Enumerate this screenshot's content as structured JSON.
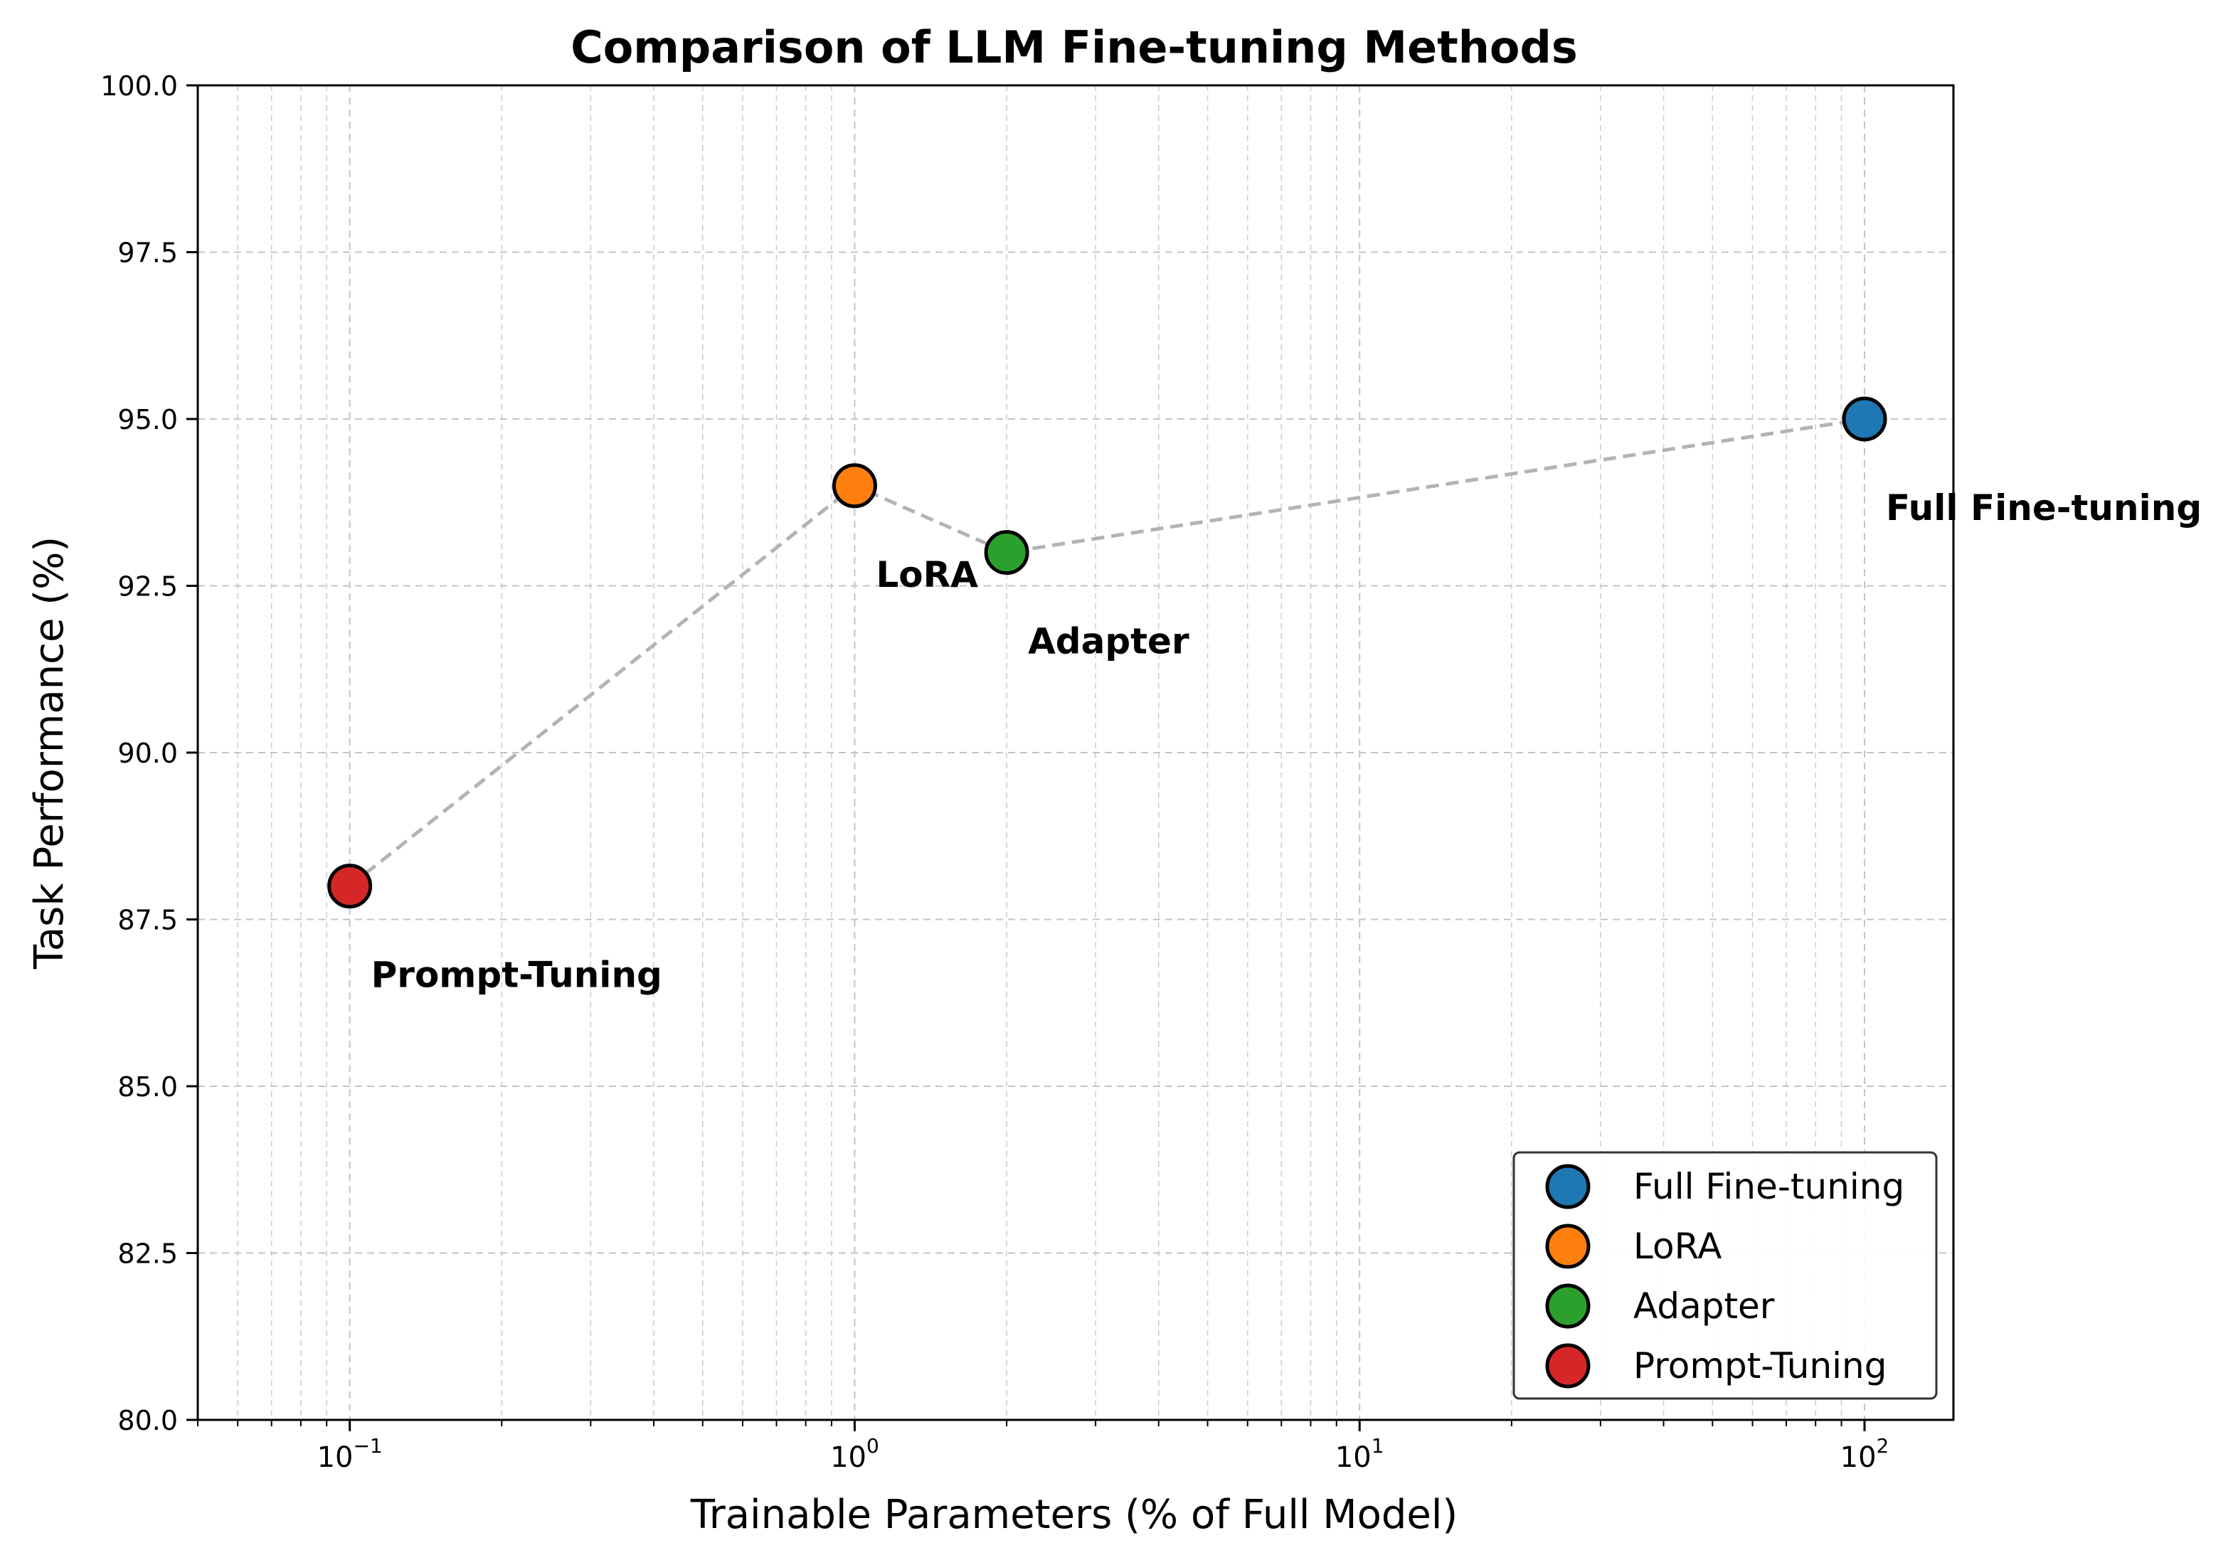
{
  "chart_data": {
    "type": "scatter",
    "title": "Comparison of LLM Fine-tuning Methods",
    "xlabel": "Trainable Parameters (% of Full Model)",
    "ylabel": "Task Performance (%)",
    "xscale": "log",
    "xlim": [
      0.05,
      150
    ],
    "ylim": [
      80,
      100
    ],
    "grid": true,
    "legend_position": "lower-right",
    "x_ticks": [
      {
        "value": 0.1,
        "base": "10",
        "exp": "−1"
      },
      {
        "value": 1,
        "base": "10",
        "exp": "0"
      },
      {
        "value": 10,
        "base": "10",
        "exp": "1"
      },
      {
        "value": 100,
        "base": "10",
        "exp": "2"
      }
    ],
    "y_ticks": [
      "80.0",
      "82.5",
      "85.0",
      "87.5",
      "90.0",
      "92.5",
      "95.0",
      "97.5",
      "100.0"
    ],
    "series": [
      {
        "name": "Full Fine-tuning",
        "x": 100,
        "y": 95.0,
        "color": "#1f77b4"
      },
      {
        "name": "LoRA",
        "x": 1,
        "y": 94.0,
        "color": "#ff7f0e"
      },
      {
        "name": "Adapter",
        "x": 2,
        "y": 93.0,
        "color": "#2ca02c"
      },
      {
        "name": "Prompt-Tuning",
        "x": 0.1,
        "y": 88.0,
        "color": "#d62728"
      }
    ],
    "trend_line_order": [
      "Prompt-Tuning",
      "LoRA",
      "Adapter",
      "Full Fine-tuning"
    ],
    "trend_line_color": "#b3b3b3",
    "legend": [
      "Full Fine-tuning",
      "LoRA",
      "Adapter",
      "Prompt-Tuning"
    ]
  }
}
